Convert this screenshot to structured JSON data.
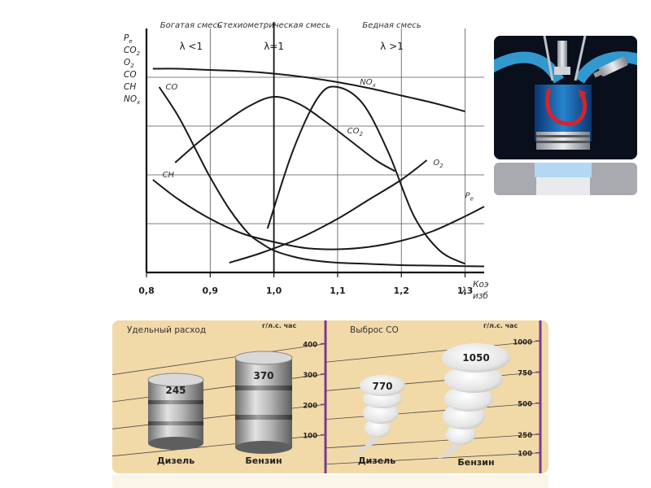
{
  "chart_data": [
    {
      "type": "line",
      "xlim": [
        0.8,
        1.33
      ],
      "ylim": [
        0,
        100
      ],
      "x_ticks": [
        "0,8",
        "0,9",
        "1,0",
        "1,1",
        "1,2",
        "1,3"
      ],
      "x_tick_values": [
        0.8,
        0.9,
        1.0,
        1.1,
        1.2,
        1.3
      ],
      "x_symbol": "λ",
      "xlabel_line1": "Коэффициент",
      "xlabel_line2": "избытка воздуха",
      "zones": [
        {
          "title": "Богатая смесь",
          "condition": "λ <1",
          "x": 0.87
        },
        {
          "title": "Стехиометрическая смесь",
          "condition": "λ=1",
          "x": 1.0
        },
        {
          "title": "Бедная смесь",
          "condition": "λ >1",
          "x": 1.185
        }
      ],
      "ylabels": [
        "P",
        "CO",
        "O",
        "CO",
        "CH",
        "NO"
      ],
      "ylabel_subs": [
        "e",
        "2",
        "2",
        "",
        "",
        "x"
      ],
      "grid": true,
      "series": [
        {
          "name": "P",
          "sub": "e",
          "label_at": [
            1.3,
            30.5
          ],
          "x": [
            0.81,
            0.85,
            0.9,
            0.95,
            1.0,
            1.05,
            1.1,
            1.15,
            1.2,
            1.25,
            1.3
          ],
          "y": [
            83.5,
            83.5,
            83,
            82.5,
            81.5,
            80,
            78,
            75.5,
            72.5,
            69.5,
            66
          ]
        },
        {
          "name": "CO",
          "sub": "",
          "label_at": [
            0.83,
            75
          ],
          "x": [
            0.82,
            0.85,
            0.88,
            0.9,
            0.93,
            0.96,
            0.98,
            1.0,
            1.03,
            1.06,
            1.1,
            1.15,
            1.2,
            1.25,
            1.3,
            1.33
          ],
          "y": [
            76,
            64,
            49,
            39,
            26,
            16,
            12,
            9,
            6.5,
            5,
            4,
            3.5,
            3,
            2.8,
            2.6,
            2.5
          ]
        },
        {
          "name": "CO",
          "sub": "2",
          "label_at": [
            1.115,
            57
          ],
          "x": [
            0.845,
            0.88,
            0.92,
            0.96,
            1.0,
            1.04,
            1.08,
            1.12,
            1.16,
            1.19
          ],
          "y": [
            45,
            53,
            61,
            68,
            72,
            69,
            62,
            54,
            46,
            41.5
          ]
        },
        {
          "name": "NO",
          "sub": "x",
          "label_at": [
            1.135,
            77
          ],
          "x": [
            0.99,
            1.03,
            1.07,
            1.1,
            1.14,
            1.18,
            1.22,
            1.26,
            1.3
          ],
          "y": [
            18,
            50,
            72,
            76,
            69,
            49,
            23,
            9,
            3.5
          ]
        },
        {
          "name": "O",
          "sub": "2",
          "label_at": [
            1.25,
            44
          ],
          "x": [
            0.93,
            0.98,
            1.04,
            1.1,
            1.15,
            1.2,
            1.24
          ],
          "y": [
            4,
            8,
            14,
            22,
            30,
            38,
            46
          ]
        },
        {
          "name": "CH",
          "sub": "",
          "label_at": [
            0.825,
            39
          ],
          "x": [
            0.81,
            0.85,
            0.9,
            0.95,
            1.0,
            1.05,
            1.1,
            1.15,
            1.2,
            1.25,
            1.3,
            1.33
          ],
          "y": [
            38,
            30,
            22,
            16,
            12.5,
            10,
            9.5,
            10.5,
            13,
            17,
            23,
            27
          ]
        }
      ]
    },
    {
      "type": "bar",
      "title": "Удельный расход",
      "unit": "г/л.с. час",
      "scale_ticks": [
        "400",
        "300",
        "200",
        "100"
      ],
      "scale_tick_values": [
        400,
        300,
        200,
        100
      ],
      "categories": [
        "Дизель",
        "Бензин"
      ],
      "values": [
        245,
        370
      ]
    },
    {
      "type": "bar",
      "title": "Выброс СО",
      "unit": "г/л.с. час",
      "scale_ticks": [
        "1000",
        "750",
        "500",
        "250",
        "100"
      ],
      "scale_tick_values": [
        1000,
        750,
        500,
        250,
        100
      ],
      "categories": [
        "Дизель",
        "Бензин"
      ],
      "values": [
        770,
        1050
      ]
    }
  ],
  "colors": {
    "curve": "#1a1a1a",
    "grid": "#555555",
    "panel_bg": "#f2d9a8",
    "scale_bar": "#7a3a8a",
    "engine_bg": "#0a0f1c",
    "engine_blue": "#1e8fd8",
    "arrow_red": "#d8232a"
  },
  "icons": {
    "engine_illustration": "engine-cylinder-icon",
    "diesel_cylinder": "cylinder-icon",
    "petrol_cylinder": "cylinder-icon",
    "diesel_smoke": "smoke-cloud-icon",
    "petrol_smoke": "smoke-cloud-icon"
  }
}
